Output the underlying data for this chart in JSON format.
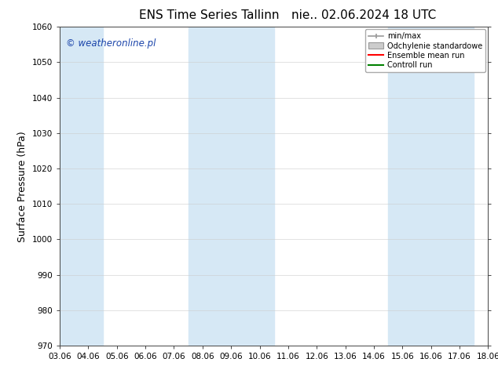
{
  "title": "ENS Time Series Tallinn",
  "subtitle": "nie.. 02.06.2024 18 UTC",
  "ylabel": "Surface Pressure (hPa)",
  "ylim": [
    970,
    1060
  ],
  "yticks": [
    970,
    980,
    990,
    1000,
    1010,
    1020,
    1030,
    1040,
    1050,
    1060
  ],
  "xtick_labels": [
    "03.06",
    "04.06",
    "05.06",
    "06.06",
    "07.06",
    "08.06",
    "09.06",
    "10.06",
    "11.06",
    "12.06",
    "13.06",
    "14.06",
    "15.06",
    "16.06",
    "17.06",
    "18.06"
  ],
  "shade_color": "#d6e8f5",
  "watermark_text": "© weatheronline.pl",
  "watermark_color": "#1a44aa",
  "legend_labels": [
    "min/max",
    "Odchylenie standardowe",
    "Ensemble mean run",
    "Controll run"
  ],
  "legend_colors_line": [
    "#aaaaaa",
    "#bbbbbb",
    "#ff0000",
    "#008000"
  ],
  "title_fontsize": 11,
  "tick_fontsize": 7.5,
  "ylabel_fontsize": 9,
  "background_color": "#ffffff",
  "grid_color": "#cccccc",
  "shaded_xranges": [
    [
      0,
      1
    ],
    [
      5,
      7
    ],
    [
      12,
      14
    ]
  ]
}
